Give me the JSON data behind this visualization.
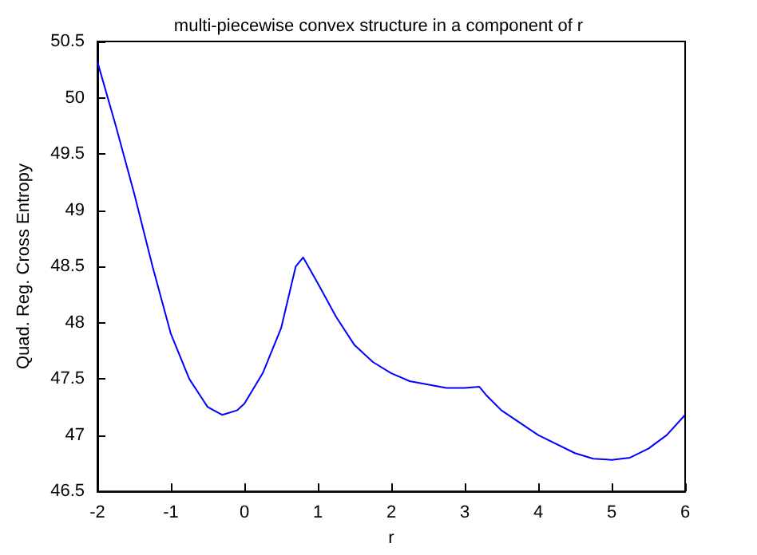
{
  "chart_data": {
    "type": "line",
    "title": "multi-piecewise convex structure in a component of r",
    "xlabel": "r",
    "ylabel": "Quad. Reg. Cross Entropy",
    "x": [
      -2,
      -1.75,
      -1.5,
      -1.25,
      -1,
      -0.75,
      -0.5,
      -0.3,
      -0.1,
      0,
      0.25,
      0.5,
      0.7,
      0.8,
      1,
      1.25,
      1.5,
      1.75,
      2,
      2.25,
      2.5,
      2.75,
      3,
      3.2,
      3.3,
      3.5,
      4,
      4.5,
      4.75,
      5,
      5.25,
      5.5,
      5.75,
      6
    ],
    "series": [
      {
        "color": "#0000ff",
        "values": [
          50.32,
          49.75,
          49.15,
          48.5,
          47.9,
          47.5,
          47.25,
          47.18,
          47.22,
          47.28,
          47.55,
          47.95,
          48.5,
          48.58,
          48.35,
          48.05,
          47.8,
          47.65,
          47.55,
          47.48,
          47.45,
          47.42,
          47.42,
          47.43,
          47.35,
          47.22,
          47,
          46.84,
          46.79,
          46.78,
          46.8,
          46.88,
          47,
          47.18
        ]
      }
    ],
    "xlim": [
      -2,
      6
    ],
    "xticks": [
      -2,
      -1,
      0,
      1,
      2,
      3,
      4,
      5,
      6
    ],
    "ylim": [
      46.5,
      50.5
    ],
    "yticks": [
      46.5,
      47,
      47.5,
      48,
      48.5,
      49,
      49.5,
      50,
      50.5
    ],
    "grid": false,
    "marker": "none",
    "line_style": "solid"
  }
}
